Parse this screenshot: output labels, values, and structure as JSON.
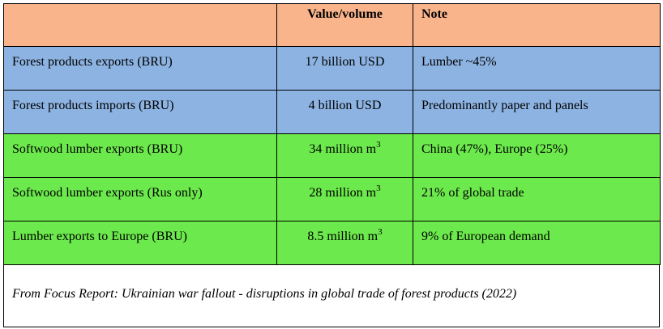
{
  "table": {
    "headers": [
      "",
      "Value/volume",
      "Note"
    ],
    "rows": [
      {
        "item": "Forest products exports (BRU)",
        "value": "17 billion USD",
        "value_sup": "",
        "note": "Lumber ~45%",
        "row_color": "#8db3e2"
      },
      {
        "item": "Forest products imports (BRU)",
        "value": "4 billion USD",
        "value_sup": "",
        "note": "Predominantly paper and panels",
        "row_color": "#8db3e2"
      },
      {
        "item": "Softwood lumber exports (BRU)",
        "value": "34 million m",
        "value_sup": "3",
        "note": "China (47%), Europe (25%)",
        "row_color": "#6ce94c"
      },
      {
        "item": "Softwood lumber exports (Rus only)",
        "value": "28 million m",
        "value_sup": "3",
        "note": "21% of global trade",
        "row_color": "#6ce94c"
      },
      {
        "item": "Lumber exports to Europe (BRU)",
        "value": "8.5 million m",
        "value_sup": "3",
        "note": "9% of European demand",
        "row_color": "#6ce94c"
      }
    ],
    "header_color": "#f9b48c"
  },
  "caption": "From Focus Report: Ukrainian war fallout - disruptions in global trade of forest products (2022)"
}
